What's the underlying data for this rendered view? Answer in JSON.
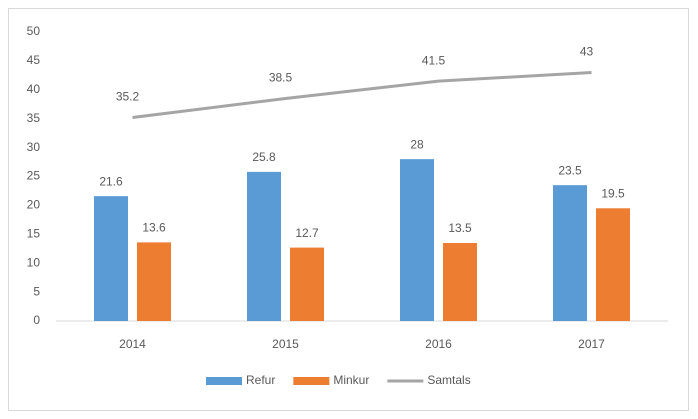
{
  "chart_data": {
    "type": "bar",
    "categories": [
      "2014",
      "2015",
      "2016",
      "2017"
    ],
    "series": [
      {
        "name": "Refur",
        "type": "bar",
        "color": "#5b9bd5",
        "values": [
          21.6,
          25.8,
          28,
          23.5
        ]
      },
      {
        "name": "Minkur",
        "type": "bar",
        "color": "#ed7d31",
        "values": [
          13.6,
          12.7,
          13.5,
          19.5
        ]
      },
      {
        "name": "Samtals",
        "type": "line",
        "color": "#a5a5a5",
        "values": [
          35.2,
          38.5,
          41.5,
          43
        ]
      }
    ],
    "ylim": [
      0,
      50
    ],
    "yticks": [
      0,
      5,
      10,
      15,
      20,
      25,
      30,
      35,
      40,
      45,
      50
    ],
    "grid": false,
    "legend": "bottom",
    "data_labels": true
  }
}
